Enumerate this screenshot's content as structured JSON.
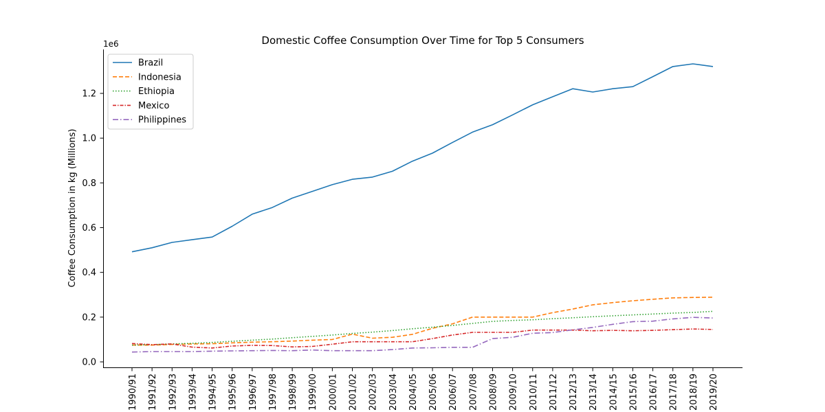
{
  "chart_data": {
    "type": "line",
    "title": "Domestic Coffee Consumption Over Time for Top 5 Consumers",
    "xlabel": "",
    "ylabel": "Coffee Consumption in kg (Millions)",
    "y_offset_label": "1e6",
    "ylim": [
      0,
      1400000
    ],
    "yticks": [
      0,
      200000,
      400000,
      600000,
      800000,
      1000000,
      1200000
    ],
    "ytick_labels": [
      "0.0",
      "0.2",
      "0.4",
      "0.6",
      "0.8",
      "1.0",
      "1.2"
    ],
    "grid": false,
    "legend_position": "top-left",
    "categories": [
      "1990/91",
      "1991/92",
      "1992/93",
      "1993/94",
      "1994/95",
      "1995/96",
      "1996/97",
      "1997/98",
      "1998/99",
      "1999/00",
      "2000/01",
      "2001/02",
      "2002/03",
      "2003/04",
      "2004/05",
      "2005/06",
      "2006/07",
      "2007/08",
      "2008/09",
      "2009/10",
      "2010/11",
      "2011/12",
      "2012/13",
      "2013/14",
      "2014/15",
      "2015/16",
      "2016/17",
      "2017/18",
      "2018/19",
      "2019/20"
    ],
    "series": [
      {
        "name": "Brazil",
        "color": "#1f77b4",
        "style": "solid",
        "values": [
          492000,
          510000,
          534000,
          546000,
          558000,
          606000,
          660000,
          690000,
          732000,
          762000,
          792000,
          816000,
          826000,
          852000,
          897000,
          933000,
          981000,
          1027000,
          1060000,
          1104000,
          1149000,
          1185000,
          1221000,
          1206000,
          1221000,
          1230000,
          1275000,
          1320000,
          1332000,
          1320000
        ]
      },
      {
        "name": "Indonesia",
        "color": "#ff7f0e",
        "style": "dashed",
        "values": [
          75000,
          75000,
          78000,
          80000,
          81000,
          85000,
          88000,
          90000,
          93000,
          97000,
          100000,
          124000,
          106000,
          110000,
          123000,
          150000,
          170000,
          200000,
          200000,
          200000,
          200000,
          220000,
          236000,
          255000,
          265000,
          273000,
          280000,
          286000,
          288000,
          289000
        ]
      },
      {
        "name": "Ethiopia",
        "color": "#2ca02c",
        "style": "dotted",
        "values": [
          75000,
          77000,
          80000,
          83000,
          87000,
          92000,
          97000,
          102000,
          108000,
          114000,
          120000,
          127000,
          133000,
          140000,
          148000,
          155000,
          163000,
          172000,
          181000,
          185000,
          188000,
          193000,
          197000,
          202000,
          206000,
          210000,
          214000,
          218000,
          221000,
          226000
        ]
      },
      {
        "name": "Mexico",
        "color": "#d62728",
        "style": "dashdot-dense",
        "values": [
          82000,
          77000,
          80000,
          66000,
          62000,
          71000,
          74000,
          73000,
          67000,
          69000,
          79000,
          90000,
          90000,
          90000,
          90000,
          104000,
          120000,
          132000,
          132000,
          132000,
          142000,
          142000,
          142000,
          139000,
          141000,
          139000,
          141000,
          144000,
          147000,
          145000
        ]
      },
      {
        "name": "Philippines",
        "color": "#9467bd",
        "style": "dashdot",
        "values": [
          44000,
          46000,
          46000,
          46000,
          48000,
          49000,
          50000,
          51000,
          50000,
          53000,
          50000,
          50000,
          50000,
          55000,
          62000,
          63000,
          65000,
          65000,
          104000,
          110000,
          128000,
          131000,
          143000,
          154000,
          168000,
          180000,
          182000,
          192000,
          199000,
          196000
        ]
      }
    ]
  }
}
